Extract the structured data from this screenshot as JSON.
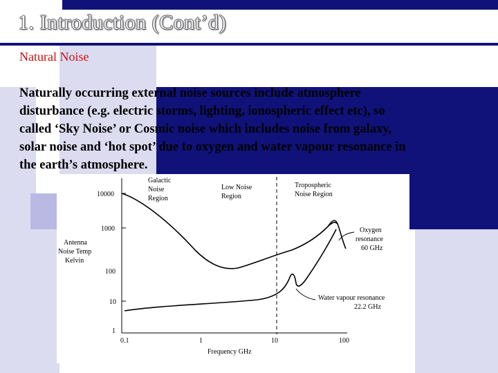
{
  "slide": {
    "title_number": "1.",
    "title_text": " Introduction (Cont’d)",
    "subtitle": "Natural Noise",
    "body_lines": [
      "Naturally occurring external noise sources include atmosphere",
      "disturbance (e.g. electric storms, lighting, ionospheric effect etc), so",
      "called ‘Sky Noise’ or Cosmic noise which includes noise  from galaxy,",
      "solar noise and ‘hot spot’ due to oxygen and water vapour resonance in",
      "the earth’s atmosphere."
    ]
  },
  "colors": {
    "navy": "#10127a",
    "light_lavender": "#dcdcf0",
    "mid_lavender": "#b9b9e4",
    "subtitle_red": "#cc1111"
  },
  "figure": {
    "y_axis_title": [
      "Antenna",
      "Noise Temp",
      "Kelvin"
    ],
    "x_axis_title": "Frequency GHz",
    "y_ticks": [
      "10000",
      "1000",
      "100",
      "10",
      "1"
    ],
    "x_ticks": [
      "0.1",
      "1",
      "10",
      "100"
    ],
    "regions": {
      "galactic": [
        "Galactic",
        "Noise",
        "Region"
      ],
      "low": [
        "Low Noise",
        "Region"
      ],
      "tropospheric": [
        "Tropospheric",
        "Noise Region"
      ]
    },
    "annotations": {
      "oxygen": [
        "Oxygen",
        "resonance",
        "60 GHz"
      ],
      "water": [
        "Water vapour resonance",
        "22.2 GHz"
      ]
    }
  }
}
